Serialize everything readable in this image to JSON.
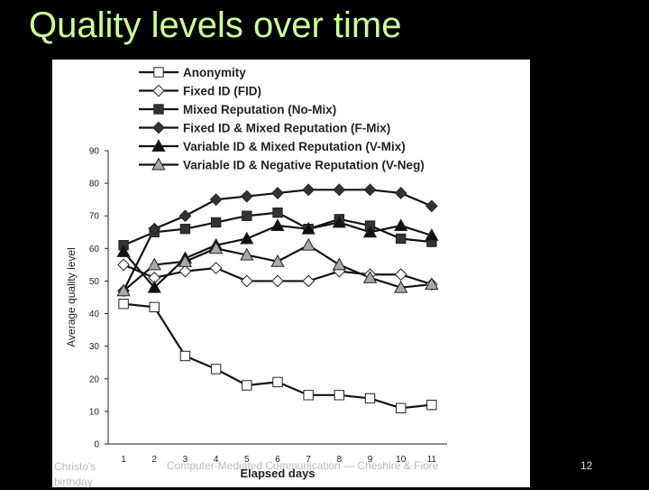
{
  "slide": {
    "title": "Quality levels over time",
    "footer_left_line1": "Christo's",
    "footer_left_line2": "birthday",
    "footer_center": "Computer-Mediated Communication — Cheshire & Fiore",
    "page_number": "12"
  },
  "colors": {
    "title": "#ccff99",
    "background": "#000000",
    "chart_bg": "#ffffff",
    "ink": "#222222"
  },
  "chart_data": {
    "type": "line",
    "title": "",
    "xlabel": "Elapsed days",
    "ylabel": "Average quality level",
    "x": [
      1,
      2,
      3,
      4,
      5,
      6,
      7,
      8,
      9,
      10,
      11
    ],
    "xticks": [
      "1",
      "2",
      "3",
      "4",
      "5",
      "6",
      "7",
      "8",
      "9",
      "10",
      "11"
    ],
    "yticks": [
      "0",
      "10",
      "20",
      "30",
      "40",
      "50",
      "60",
      "70",
      "80",
      "90"
    ],
    "ylim": [
      0,
      90
    ],
    "xlim": [
      0.5,
      11.5
    ],
    "legend_position": "top",
    "series": [
      {
        "name": "Anonymity",
        "marker": "square",
        "fill": "#ffffff",
        "values": [
          43,
          42,
          27,
          23,
          18,
          19,
          15,
          15,
          14,
          11,
          12
        ]
      },
      {
        "name": "Fixed ID (FID)",
        "marker": "diamond",
        "fill": "#ffffff",
        "values": [
          55,
          51,
          53,
          54,
          50,
          50,
          50,
          53,
          52,
          52,
          49
        ]
      },
      {
        "name": "Mixed Reputation (No-Mix)",
        "marker": "square",
        "fill": "#333333",
        "values": [
          61,
          65,
          66,
          68,
          70,
          71,
          66,
          69,
          67,
          63,
          62
        ]
      },
      {
        "name": "Fixed ID & Mixed Reputation (F-Mix)",
        "marker": "diamond",
        "fill": "#333333",
        "values": [
          47,
          66,
          70,
          75,
          76,
          77,
          78,
          78,
          78,
          77,
          73
        ]
      },
      {
        "name": "Variable ID & Mixed Reputation (V-Mix)",
        "marker": "triangle",
        "fill": "#111111",
        "values": [
          59,
          48,
          57,
          61,
          63,
          67,
          66,
          68,
          65,
          67,
          64
        ]
      },
      {
        "name": "Variable ID & Negative Reputation (V-Neg)",
        "marker": "triangle",
        "fill": "#aaaaaa",
        "values": [
          47,
          55,
          56,
          60,
          58,
          56,
          61,
          55,
          51,
          48,
          49
        ]
      }
    ]
  }
}
